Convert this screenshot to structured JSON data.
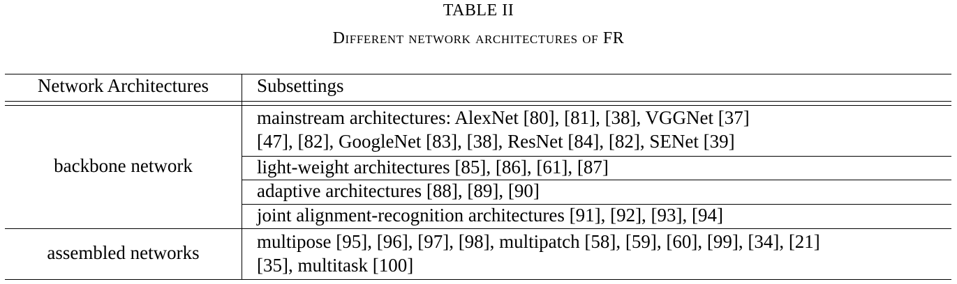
{
  "caption": {
    "label": "TABLE II",
    "title": "Different network architectures of FR"
  },
  "table": {
    "headers": [
      "Network Architectures",
      "Subsettings"
    ],
    "groups": [
      {
        "name": "backbone network",
        "rows": [
          [
            "mainstream architectures: AlexNet [80], [81], [38], VGGNet [37]",
            "[47], [82], GoogleNet [83], [38], ResNet [84], [82], SENet [39]"
          ],
          [
            "light-weight architectures [85], [86], [61], [87]"
          ],
          [
            "adaptive architectures [88], [89], [90]"
          ],
          [
            "joint alignment-recognition architectures [91], [92], [93], [94]"
          ]
        ]
      },
      {
        "name": "assembled networks",
        "rows": [
          [
            "multipose [95], [96], [97], [98], multipatch [58], [59], [60], [99], [34], [21]",
            "[35], multitask [100]"
          ]
        ]
      }
    ]
  }
}
